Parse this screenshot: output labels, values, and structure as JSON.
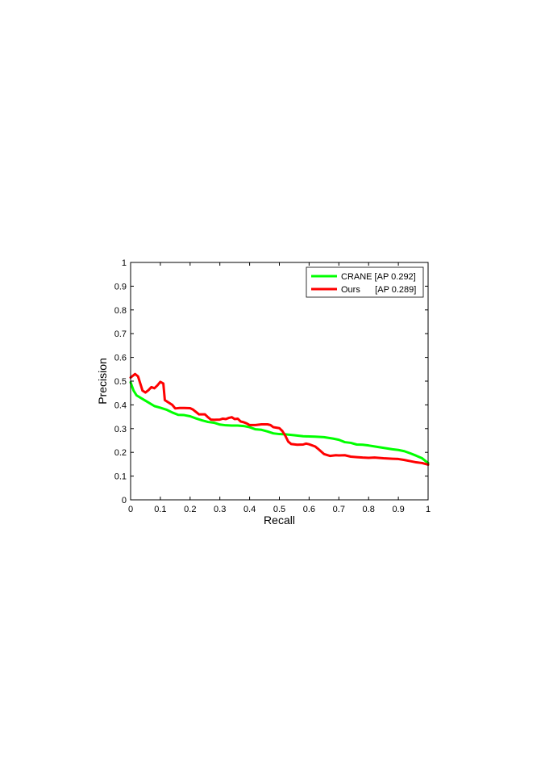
{
  "chart_data": {
    "type": "line",
    "title": "",
    "xlabel": "Recall",
    "ylabel": "Precision",
    "xlim": [
      0,
      1
    ],
    "ylim": [
      0,
      1
    ],
    "xticks": [
      0,
      0.1,
      0.2,
      0.3,
      0.4,
      0.5,
      0.6,
      0.7,
      0.8,
      0.9,
      1
    ],
    "xtick_labels": [
      "0",
      "0.1",
      "0.2",
      "0.3",
      "0.4",
      "0.5",
      "0.6",
      "0.7",
      "0.8",
      "0.9",
      "1"
    ],
    "yticks": [
      0,
      0.1,
      0.2,
      0.3,
      0.4,
      0.5,
      0.6,
      0.7,
      0.8,
      0.9,
      1
    ],
    "ytick_labels": [
      "0",
      "0.1",
      "0.2",
      "0.3",
      "0.4",
      "0.5",
      "0.6",
      "0.7",
      "0.8",
      "0.9",
      "1"
    ],
    "grid": false,
    "legend_position": "top-right",
    "series": [
      {
        "name": "CRANE",
        "legend_label": "CRANE [AP 0.292]",
        "color": "#00ff00",
        "x": [
          0,
          0.01,
          0.02,
          0.04,
          0.06,
          0.08,
          0.1,
          0.12,
          0.14,
          0.16,
          0.18,
          0.2,
          0.22,
          0.24,
          0.26,
          0.28,
          0.3,
          0.32,
          0.34,
          0.36,
          0.38,
          0.4,
          0.42,
          0.44,
          0.46,
          0.48,
          0.5,
          0.52,
          0.55,
          0.58,
          0.6,
          0.62,
          0.65,
          0.68,
          0.7,
          0.72,
          0.74,
          0.76,
          0.78,
          0.8,
          0.82,
          0.85,
          0.88,
          0.9,
          0.92,
          0.94,
          0.96,
          0.98,
          1.0
        ],
        "y": [
          0.495,
          0.46,
          0.44,
          0.425,
          0.41,
          0.395,
          0.388,
          0.38,
          0.368,
          0.358,
          0.357,
          0.352,
          0.343,
          0.335,
          0.328,
          0.325,
          0.317,
          0.314,
          0.313,
          0.313,
          0.311,
          0.306,
          0.297,
          0.295,
          0.288,
          0.28,
          0.277,
          0.276,
          0.272,
          0.268,
          0.267,
          0.266,
          0.264,
          0.258,
          0.253,
          0.243,
          0.24,
          0.233,
          0.232,
          0.229,
          0.225,
          0.219,
          0.213,
          0.21,
          0.205,
          0.196,
          0.186,
          0.175,
          0.155
        ]
      },
      {
        "name": "Ours",
        "legend_label": "Ours      [AP 0.289]",
        "color": "#ff0000",
        "x": [
          0,
          0.005,
          0.015,
          0.025,
          0.04,
          0.05,
          0.06,
          0.07,
          0.08,
          0.09,
          0.1,
          0.11,
          0.115,
          0.125,
          0.14,
          0.15,
          0.165,
          0.18,
          0.2,
          0.21,
          0.22,
          0.23,
          0.25,
          0.26,
          0.27,
          0.28,
          0.3,
          0.31,
          0.32,
          0.33,
          0.34,
          0.35,
          0.36,
          0.37,
          0.38,
          0.39,
          0.4,
          0.42,
          0.44,
          0.46,
          0.47,
          0.48,
          0.5,
          0.51,
          0.52,
          0.53,
          0.54,
          0.56,
          0.58,
          0.59,
          0.6,
          0.62,
          0.63,
          0.65,
          0.67,
          0.69,
          0.7,
          0.72,
          0.74,
          0.76,
          0.78,
          0.8,
          0.82,
          0.85,
          0.88,
          0.9,
          0.92,
          0.94,
          0.96,
          0.98,
          1.0
        ],
        "y": [
          0.515,
          0.52,
          0.53,
          0.52,
          0.46,
          0.452,
          0.462,
          0.475,
          0.47,
          0.482,
          0.497,
          0.49,
          0.42,
          0.412,
          0.4,
          0.385,
          0.387,
          0.387,
          0.386,
          0.38,
          0.37,
          0.36,
          0.36,
          0.348,
          0.338,
          0.337,
          0.338,
          0.342,
          0.34,
          0.345,
          0.348,
          0.34,
          0.342,
          0.33,
          0.327,
          0.322,
          0.315,
          0.315,
          0.318,
          0.318,
          0.315,
          0.306,
          0.302,
          0.29,
          0.27,
          0.245,
          0.235,
          0.232,
          0.233,
          0.237,
          0.234,
          0.225,
          0.215,
          0.193,
          0.185,
          0.188,
          0.187,
          0.188,
          0.182,
          0.18,
          0.178,
          0.177,
          0.178,
          0.175,
          0.173,
          0.172,
          0.168,
          0.163,
          0.158,
          0.155,
          0.148
        ]
      }
    ]
  }
}
